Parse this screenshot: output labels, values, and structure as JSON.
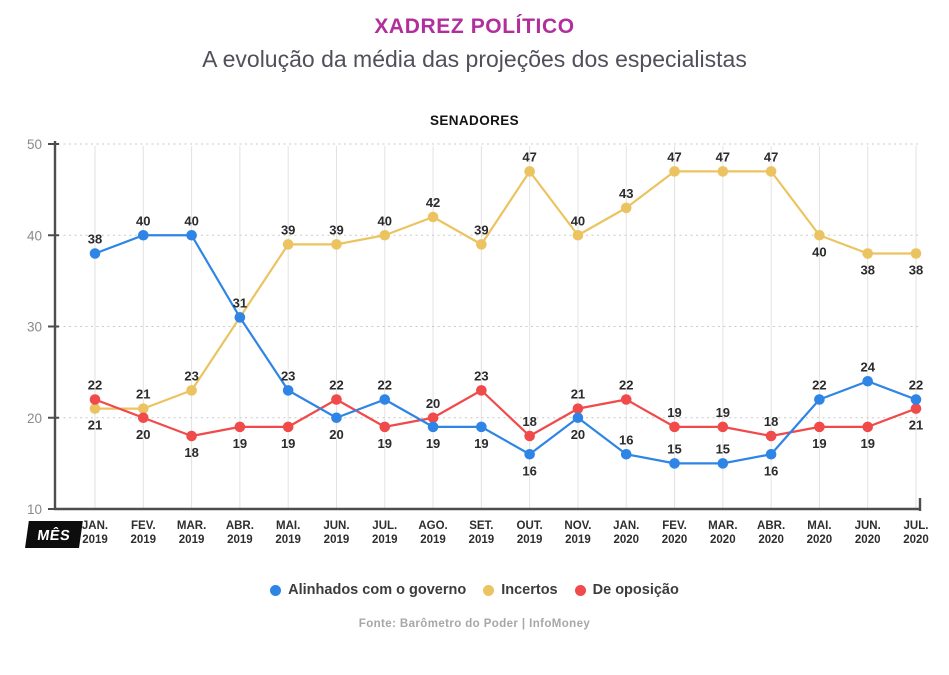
{
  "header": {
    "title": "XADREZ POLÍTICO",
    "subtitle": "A evolução da média das projeções dos especialistas",
    "accent_color": "#b02f9c"
  },
  "chart_data": {
    "type": "line",
    "title": "SENADORES",
    "x_axis_label": "MÊS",
    "ylim": [
      10,
      50
    ],
    "yticks": [
      10,
      20,
      30,
      40,
      50
    ],
    "grid": {
      "vertical": true,
      "horizontal_dotted": true
    },
    "legend_position": "bottom",
    "categories": [
      {
        "month": "JAN.",
        "year": "2019"
      },
      {
        "month": "FEV.",
        "year": "2019"
      },
      {
        "month": "MAR.",
        "year": "2019"
      },
      {
        "month": "ABR.",
        "year": "2019"
      },
      {
        "month": "MAI.",
        "year": "2019"
      },
      {
        "month": "JUN.",
        "year": "2019"
      },
      {
        "month": "JUL.",
        "year": "2019"
      },
      {
        "month": "AGO.",
        "year": "2019"
      },
      {
        "month": "SET.",
        "year": "2019"
      },
      {
        "month": "OUT.",
        "year": "2019"
      },
      {
        "month": "NOV.",
        "year": "2019"
      },
      {
        "month": "JAN.",
        "year": "2020"
      },
      {
        "month": "FEV.",
        "year": "2020"
      },
      {
        "month": "MAR.",
        "year": "2020"
      },
      {
        "month": "ABR.",
        "year": "2020"
      },
      {
        "month": "MAI.",
        "year": "2020"
      },
      {
        "month": "JUN.",
        "year": "2020"
      },
      {
        "month": "JUL.",
        "year": "2020"
      }
    ],
    "series": [
      {
        "name": "Alinhados com o governo",
        "color": "#2e85e5",
        "values": [
          38,
          40,
          40,
          31,
          23,
          20,
          22,
          19,
          19,
          16,
          20,
          16,
          15,
          15,
          16,
          22,
          24,
          22
        ],
        "labels_position": [
          "above",
          "above",
          "above",
          "above",
          "above",
          "below",
          "above",
          "below",
          "below",
          "below",
          "below",
          "above",
          "above",
          "above",
          "below",
          "above",
          "above",
          "above"
        ]
      },
      {
        "name": "Incertos",
        "color": "#ecc361",
        "values": [
          21,
          21,
          23,
          31,
          39,
          39,
          40,
          42,
          39,
          47,
          40,
          43,
          47,
          47,
          47,
          40,
          38,
          38
        ],
        "labels_position": [
          "below",
          "above",
          "above",
          null,
          "above",
          "above",
          "above",
          "above",
          "above",
          "above",
          "above",
          "above",
          "above",
          "above",
          "above",
          "below",
          "below",
          "below"
        ]
      },
      {
        "name": "De oposição",
        "color": "#f14a4a",
        "values": [
          22,
          20,
          18,
          19,
          19,
          22,
          19,
          20,
          23,
          18,
          21,
          22,
          19,
          19,
          18,
          19,
          19,
          21
        ],
        "labels_position": [
          "above",
          "below",
          "below",
          "below",
          "below",
          "above",
          "below",
          "above",
          "above",
          "above",
          "above",
          "above",
          "above",
          "above",
          "above",
          "below",
          "below",
          "below"
        ]
      }
    ]
  },
  "footer": {
    "source": "Fonte: Barômetro do Poder | InfoMoney"
  }
}
